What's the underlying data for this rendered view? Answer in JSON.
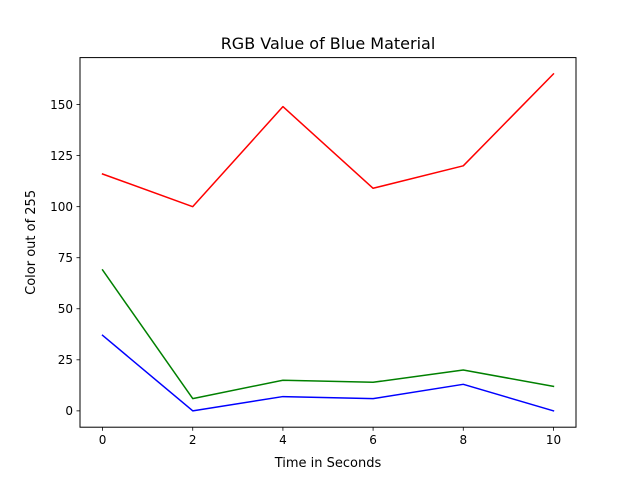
{
  "chart_data": {
    "type": "line",
    "title": "RGB Value of Blue Material",
    "xlabel": "Time in Seconds",
    "ylabel": "Color out of 255",
    "x": [
      0,
      2,
      4,
      6,
      8,
      10
    ],
    "xlim": [
      -0.5,
      10.5
    ],
    "ylim": [
      -8,
      173
    ],
    "xticks": [
      0,
      2,
      4,
      6,
      8,
      10
    ],
    "yticks": [
      0,
      25,
      50,
      75,
      100,
      125,
      150
    ],
    "grid": false,
    "series": [
      {
        "color": "#ff0000",
        "values": [
          116,
          100,
          149,
          109,
          120,
          165
        ]
      },
      {
        "color": "#008000",
        "values": [
          69,
          6,
          15,
          14,
          20,
          12
        ]
      },
      {
        "color": "#0000ff",
        "values": [
          37,
          0,
          7,
          6,
          13,
          0
        ]
      }
    ]
  }
}
